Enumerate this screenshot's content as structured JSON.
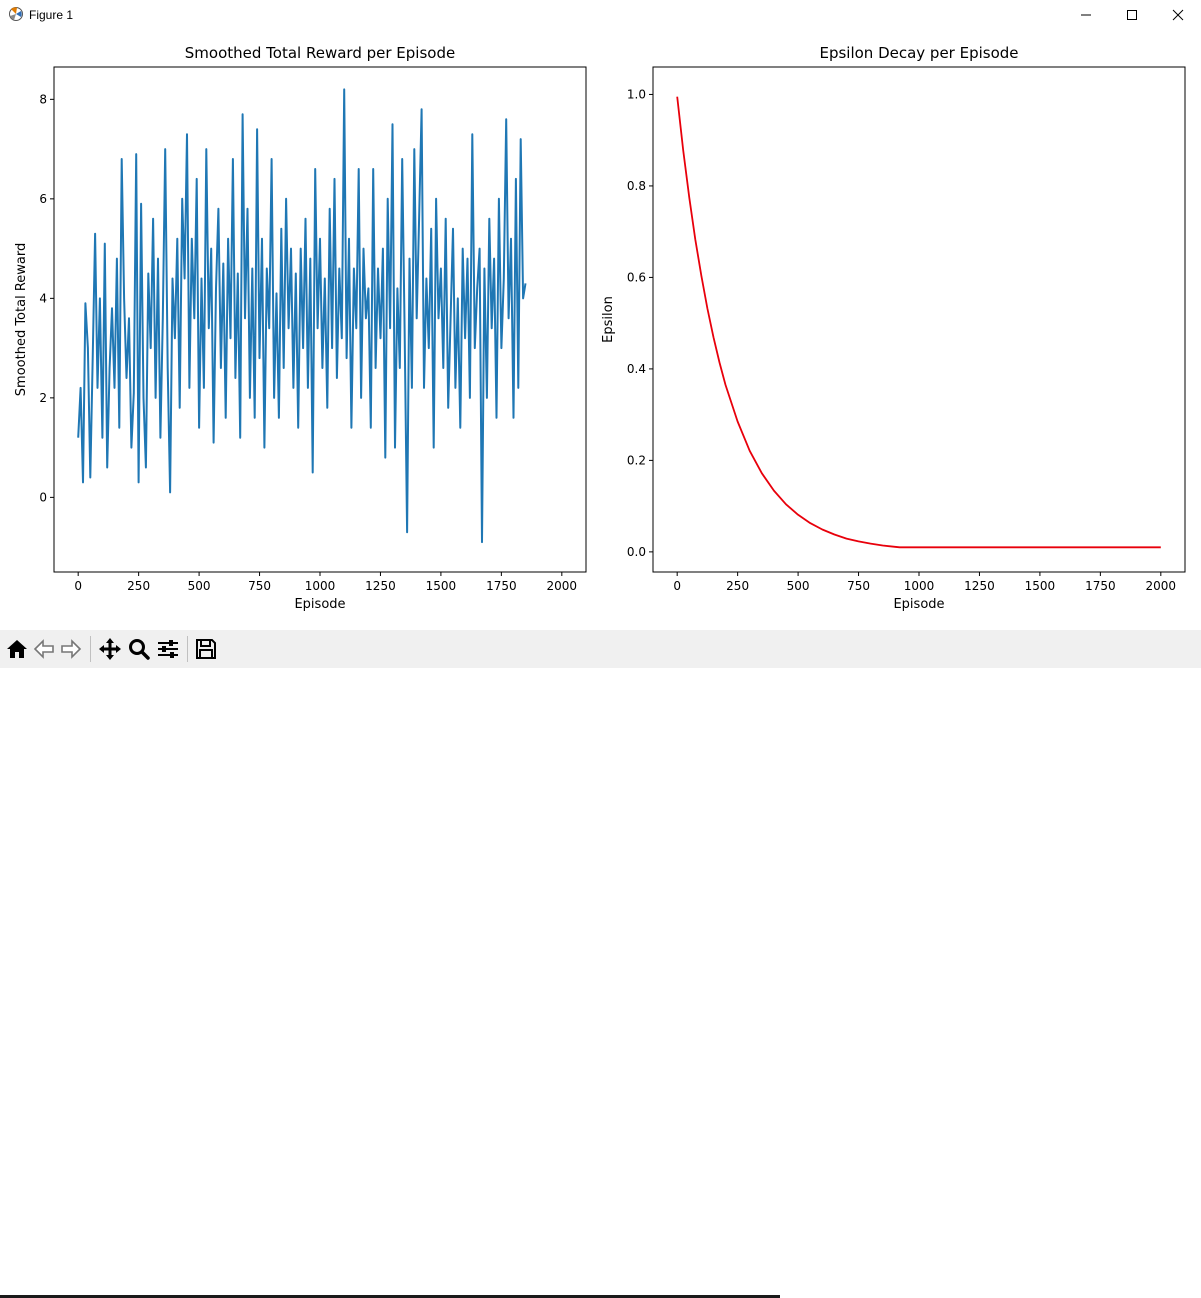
{
  "window": {
    "title": "Figure 1"
  },
  "toolbar": {
    "icons": [
      "home-icon",
      "back-icon",
      "forward-icon",
      "pan-icon",
      "zoom-icon",
      "configure-subplots-icon",
      "save-icon"
    ]
  },
  "colors": {
    "reward_line": "#1f77b4",
    "epsilon_line": "#e8000b"
  },
  "chart_data": [
    {
      "type": "line",
      "title": "Smoothed Total Reward per Episode",
      "xlabel": "Episode",
      "ylabel": "Smoothed Total Reward",
      "xlim": [
        -100,
        2100
      ],
      "ylim": [
        -1.5,
        8.65
      ],
      "xticks": [
        0,
        250,
        500,
        750,
        1000,
        1250,
        1500,
        1750,
        2000
      ],
      "xtick_labels": [
        "0",
        "250",
        "500",
        "750",
        "1000",
        "1250",
        "1500",
        "1750",
        "2000"
      ],
      "yticks": [
        0,
        2,
        4,
        6,
        8
      ],
      "ytick_labels": [
        "0",
        "2",
        "4",
        "6",
        "8"
      ],
      "series": [
        {
          "x_start": 0,
          "x_step": 10,
          "values": [
            1.2,
            2.2,
            0.3,
            3.9,
            3.0,
            0.4,
            2.8,
            5.3,
            2.2,
            4.0,
            1.2,
            5.1,
            0.6,
            2.6,
            3.8,
            2.2,
            4.8,
            1.4,
            6.8,
            4.0,
            2.4,
            3.6,
            1.0,
            2.1,
            6.9,
            0.3,
            5.9,
            2.0,
            0.6,
            4.5,
            3.0,
            5.6,
            2.0,
            4.8,
            1.2,
            3.6,
            7.0,
            2.6,
            0.1,
            4.4,
            3.2,
            5.2,
            1.8,
            6.0,
            4.4,
            7.3,
            2.2,
            5.2,
            3.6,
            6.4,
            1.4,
            4.4,
            2.2,
            7.0,
            3.4,
            5.0,
            1.1,
            4.2,
            5.8,
            2.6,
            4.7,
            1.6,
            5.2,
            3.2,
            6.8,
            2.4,
            4.5,
            1.2,
            7.7,
            3.6,
            5.8,
            2.0,
            4.6,
            1.6,
            7.4,
            2.8,
            5.2,
            1.0,
            4.6,
            3.4,
            6.8,
            2.0,
            4.1,
            1.6,
            5.4,
            2.6,
            6.0,
            3.4,
            5.0,
            2.2,
            4.5,
            1.4,
            5.0,
            3.0,
            5.6,
            2.2,
            4.8,
            0.5,
            6.6,
            3.4,
            5.2,
            2.6,
            4.4,
            1.8,
            5.8,
            3.0,
            6.4,
            2.4,
            4.6,
            3.2,
            8.2,
            2.8,
            5.2,
            1.4,
            4.6,
            3.4,
            6.6,
            2.0,
            5.0,
            3.6,
            4.2,
            1.4,
            6.6,
            2.6,
            4.6,
            3.2,
            5.0,
            0.8,
            6.0,
            3.4,
            7.5,
            1.0,
            4.2,
            2.6,
            6.8,
            3.4,
            -0.7,
            4.8,
            2.2,
            7.0,
            3.6,
            5.6,
            7.8,
            2.2,
            4.4,
            3.0,
            5.4,
            1.0,
            6.0,
            3.6,
            4.6,
            2.6,
            5.6,
            1.8,
            3.6,
            5.4,
            2.2,
            4.0,
            1.4,
            5.0,
            3.2,
            4.8,
            2.0,
            7.3,
            3.0,
            4.2,
            5.0,
            -0.9,
            4.6,
            2.0,
            5.6,
            3.4,
            4.8,
            1.6,
            6.0,
            3.0,
            4.4,
            7.6,
            3.6,
            5.2,
            1.6,
            6.4,
            2.2,
            7.2,
            4.0,
            4.3
          ]
        }
      ]
    },
    {
      "type": "line",
      "title": "Epsilon Decay per Episode",
      "xlabel": "Episode",
      "ylabel": "Epsilon",
      "xlim": [
        -100,
        2100
      ],
      "ylim": [
        -0.044,
        1.06
      ],
      "xticks": [
        0,
        250,
        500,
        750,
        1000,
        1250,
        1500,
        1750,
        2000
      ],
      "xtick_labels": [
        "0",
        "250",
        "500",
        "750",
        "1000",
        "1250",
        "1500",
        "1750",
        "2000"
      ],
      "yticks": [
        0.0,
        0.2,
        0.4,
        0.6,
        0.8,
        1.0
      ],
      "ytick_labels": [
        "0.0",
        "0.2",
        "0.4",
        "0.6",
        "0.8",
        "1.0"
      ],
      "series": [
        {
          "x": [
            0,
            25,
            50,
            75,
            100,
            125,
            150,
            175,
            200,
            250,
            300,
            350,
            400,
            450,
            500,
            550,
            600,
            650,
            700,
            750,
            800,
            850,
            900,
            920,
            1000,
            1250,
            1500,
            1750,
            2000
          ],
          "values": [
            0.995,
            0.878,
            0.774,
            0.683,
            0.603,
            0.532,
            0.469,
            0.414,
            0.365,
            0.285,
            0.221,
            0.172,
            0.134,
            0.104,
            0.081,
            0.063,
            0.049,
            0.038,
            0.029,
            0.023,
            0.018,
            0.014,
            0.011,
            0.01,
            0.01,
            0.01,
            0.01,
            0.01,
            0.01
          ]
        }
      ]
    }
  ]
}
